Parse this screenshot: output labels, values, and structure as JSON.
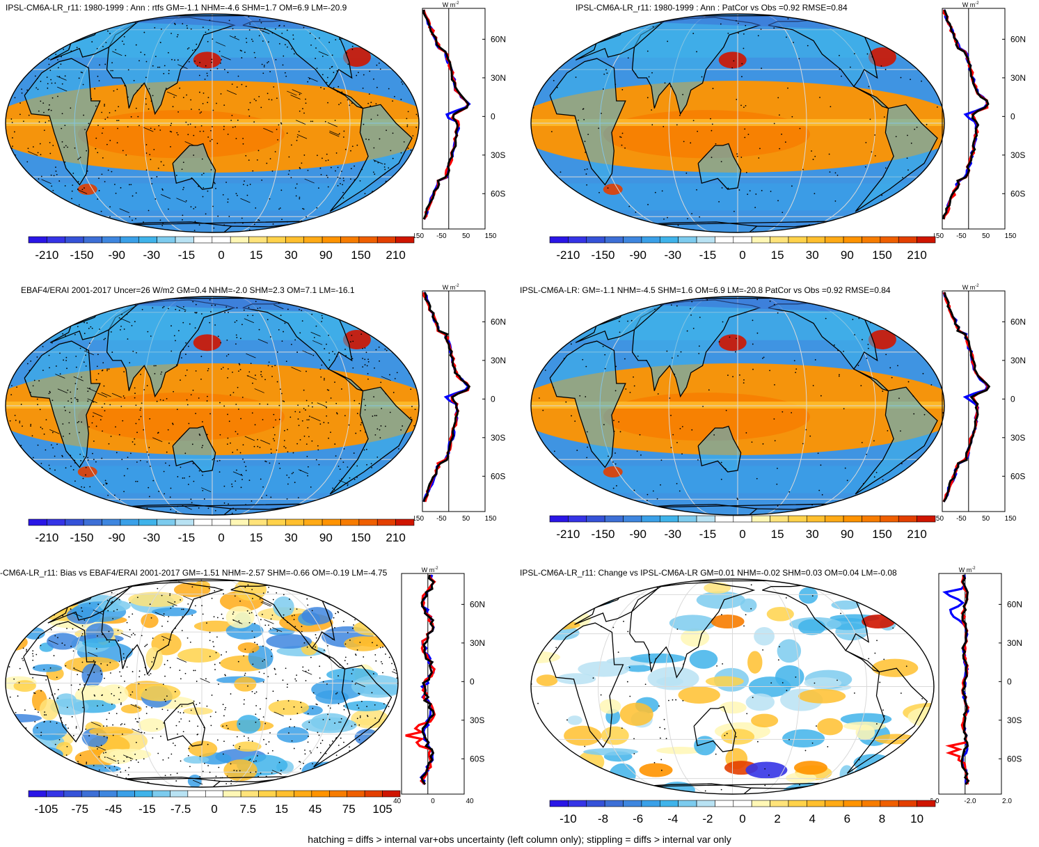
{
  "colors": {
    "diverging": [
      "#2a16e6",
      "#3534e6",
      "#3552d8",
      "#3d6fd6",
      "#3e86df",
      "#3aa0e8",
      "#3fb3ea",
      "#7ccbee",
      "#b8e2f3",
      "#ffffff",
      "#ffffff",
      "#fff7b5",
      "#ffe37a",
      "#ffd24a",
      "#ffbf2e",
      "#ffaa16",
      "#ff9300",
      "#f77c00",
      "#ef5f00",
      "#e33f00",
      "#cf1500"
    ],
    "ocean_base": "#3f94e2",
    "land_line": "#000000",
    "grid_line": "#d9d9d9",
    "zonal_model": "#000000",
    "zonal_obs1": "#0000ff",
    "zonal_obs2": "#ff0000"
  },
  "units": "W m",
  "units_exp": "-2",
  "footnote": "hatching = diffs > internal var+obs uncertainty (left column only); stippling = diffs > internal var only",
  "lat_labels": [
    "60N",
    "30N",
    "0",
    "30S",
    "60S"
  ],
  "panels": [
    {
      "id": "p1",
      "title": "IPSL-CM6A-LR_r11: 1980-1999 : Ann : rtfs GM=-1.1 NHM=-4.6 SHM=1.7 OM=6.9 LM=-20.9",
      "colorbar_labels": [
        "-210",
        "-150",
        "-90",
        "-30",
        "-15",
        "0",
        "15",
        "30",
        "90",
        "150",
        "210"
      ],
      "zonal_xticks": [
        "-150",
        "-50",
        "50",
        "150"
      ],
      "stippled": true,
      "hatched": true,
      "kind": "flux"
    },
    {
      "id": "p2",
      "title": "IPSL-CM6A-LR_r11: 1980-1999 : Ann : PatCor vs Obs =0.92 RMSE=0.84",
      "colorbar_labels": [
        "-210",
        "-150",
        "-90",
        "-30",
        "-15",
        "0",
        "15",
        "30",
        "90",
        "150",
        "210"
      ],
      "zonal_xticks": [
        "-150",
        "-50",
        "50",
        "150"
      ],
      "stippled": true,
      "hatched": false,
      "kind": "flux"
    },
    {
      "id": "p3",
      "title": "EBAF4/ERAI 2001-2017 Uncer=26 W/m2 GM=0.4 NHM=-2.0 SHM=2.3 OM=7.1 LM=-16.1",
      "colorbar_labels": [
        "-210",
        "-150",
        "-90",
        "-30",
        "-15",
        "0",
        "15",
        "30",
        "90",
        "150",
        "210"
      ],
      "zonal_xticks": [
        "-150",
        "-50",
        "50",
        "150"
      ],
      "stippled": true,
      "hatched": true,
      "kind": "flux"
    },
    {
      "id": "p4",
      "title": "IPSL-CM6A-LR: GM=-1.1 NHM=-4.5 SHM=1.6 OM=6.9 LM=-20.8 PatCor vs Obs =0.92 RMSE=0.84",
      "colorbar_labels": [
        "-210",
        "-150",
        "-90",
        "-30",
        "-15",
        "0",
        "15",
        "30",
        "90",
        "150",
        "210"
      ],
      "zonal_xticks": [
        "-150",
        "-50",
        "50",
        "150"
      ],
      "stippled": true,
      "hatched": false,
      "kind": "flux"
    },
    {
      "id": "p5",
      "title": "-CM6A-LR_r11: Bias vs EBAF4/ERAI 2001-2017 GM=-1.51 NHM=-2.57 SHM=-0.66 OM=-0.19 LM=-4.75",
      "colorbar_labels": [
        "-105",
        "-75",
        "-45",
        "-15",
        "-7.5",
        "0",
        "7.5",
        "15",
        "45",
        "75",
        "105"
      ],
      "zonal_xticks": [
        "-40",
        "0",
        "40"
      ],
      "stippled": true,
      "hatched": true,
      "kind": "bias"
    },
    {
      "id": "p6",
      "title": "IPSL-CM6A-LR_r11: Change vs IPSL-CM6A-LR GM=0.01 NHM=-0.02 SHM=0.03 OM=0.04 LM=-0.08",
      "colorbar_labels": [
        "-10",
        "-8",
        "-6",
        "-4",
        "-2",
        "0",
        "2",
        "4",
        "6",
        "8",
        "10"
      ],
      "zonal_xticks": [
        "-6.0",
        "-2.0",
        "2.0"
      ],
      "stippled": true,
      "hatched": false,
      "kind": "change"
    }
  ]
}
